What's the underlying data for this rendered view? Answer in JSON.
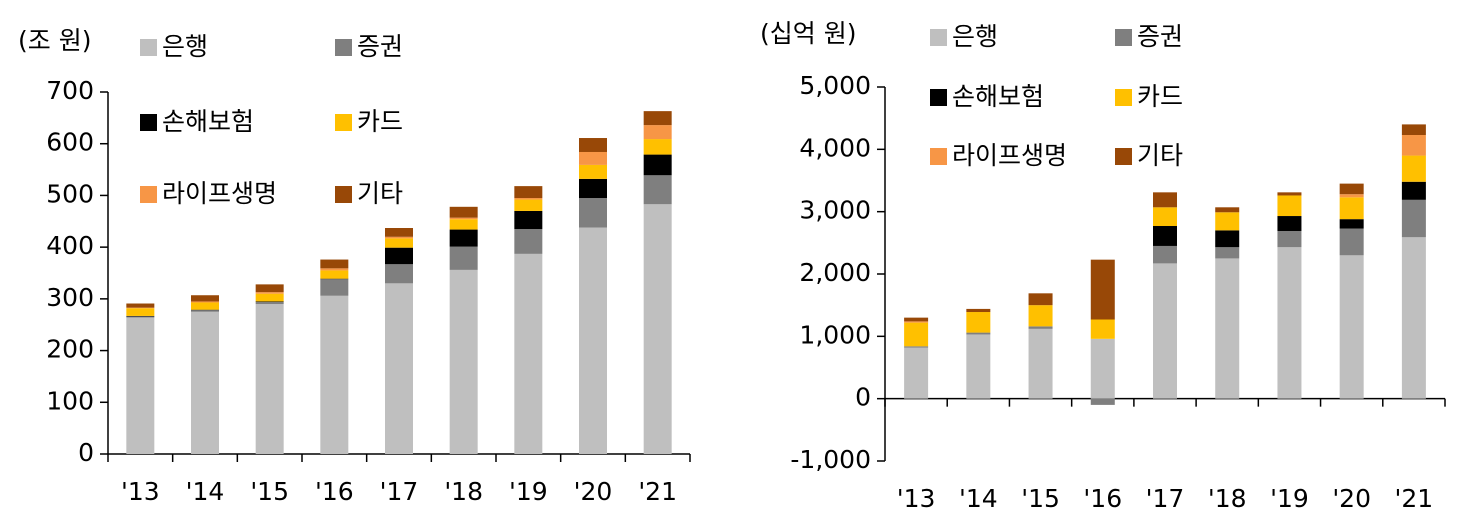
{
  "chart_data": [
    {
      "type": "bar",
      "stacked": true,
      "unit_label": "(조 원)",
      "categories": [
        "'13",
        "'14",
        "'15",
        "'16",
        "'17",
        "'18",
        "'19",
        "'20",
        "'21"
      ],
      "series": [
        {
          "name": "은행",
          "color": "#bfbfbf",
          "values": [
            264,
            275,
            290,
            306,
            330,
            356,
            387,
            438,
            483
          ]
        },
        {
          "name": "증권",
          "color": "#7f7f7f",
          "values": [
            2,
            3,
            4,
            32,
            37,
            45,
            48,
            57,
            56
          ]
        },
        {
          "name": "손해보험",
          "color": "#000000",
          "values": [
            1,
            1,
            1,
            1,
            32,
            33,
            35,
            37,
            40
          ]
        },
        {
          "name": "카드",
          "color": "#ffc000",
          "values": [
            15,
            14,
            15,
            16,
            18,
            20,
            22,
            27,
            30
          ]
        },
        {
          "name": "라이프생명",
          "color": "#f79646",
          "values": [
            1,
            2,
            3,
            4,
            3,
            3,
            3,
            25,
            27
          ]
        },
        {
          "name": "기타",
          "color": "#984807",
          "values": [
            8,
            12,
            15,
            17,
            17,
            21,
            23,
            27,
            27
          ]
        }
      ],
      "ylim": [
        0,
        700
      ],
      "yticks": [
        0,
        100,
        200,
        300,
        400,
        500,
        600,
        700
      ]
    },
    {
      "type": "bar",
      "stacked": true,
      "unit_label": "(십억 원)",
      "categories": [
        "'13",
        "'14",
        "'15",
        "'16",
        "'17",
        "'18",
        "'19",
        "'20",
        "'21"
      ],
      "series": [
        {
          "name": "은행",
          "color": "#bfbfbf",
          "values": [
            820,
            1030,
            1120,
            960,
            2170,
            2250,
            2430,
            2300,
            2590
          ]
        },
        {
          "name": "증권",
          "color": "#7f7f7f",
          "values": [
            20,
            30,
            40,
            -100,
            280,
            180,
            260,
            430,
            600
          ]
        },
        {
          "name": "손해보험",
          "color": "#000000",
          "values": [
            0,
            0,
            0,
            0,
            320,
            270,
            240,
            150,
            290
          ]
        },
        {
          "name": "카드",
          "color": "#ffc000",
          "values": [
            380,
            330,
            340,
            310,
            300,
            290,
            330,
            350,
            420
          ]
        },
        {
          "name": "라이프생명",
          "color": "#f79646",
          "values": [
            20,
            0,
            0,
            0,
            0,
            0,
            0,
            50,
            330
          ]
        },
        {
          "name": "기타",
          "color": "#984807",
          "values": [
            60,
            50,
            190,
            960,
            240,
            80,
            50,
            170,
            170
          ]
        }
      ],
      "ylim": [
        -1000,
        5000
      ],
      "yticks": [
        {
          "value": -1000,
          "label": "-1,000"
        },
        0,
        {
          "value": 1000,
          "label": "1,000"
        },
        {
          "value": 2000,
          "label": "2,000"
        },
        {
          "value": 3000,
          "label": "3,000"
        },
        {
          "value": 4000,
          "label": "4,000"
        },
        {
          "value": 5000,
          "label": "5,000"
        }
      ]
    }
  ]
}
